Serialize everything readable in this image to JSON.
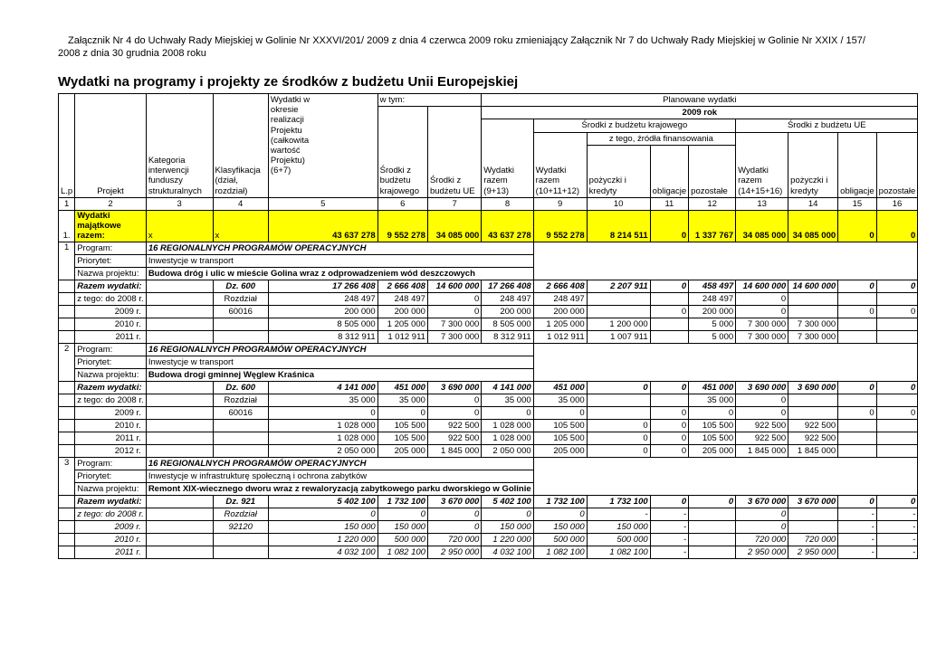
{
  "meta": {
    "attachment_note": "Załącznik Nr 4 do Uchwały Rady Miejskiej w Golinie Nr XXXVI/201/ 2009 z dnia 4 czerwca 2009 roku zmieniający Załącznik Nr 7 do Uchwały Rady Miejskiej w Golinie Nr  XXIX / 157/ 2008 z dnia 30 grudnia 2008 roku",
    "title": "Wydatki na programy i projekty ze środków z budżetu Unii Europejskiej"
  },
  "header": {
    "lp": "L.p",
    "projekt": "Projekt",
    "kategoria": "Kategoria interwencji funduszy strukturalnych",
    "klasyfikacja": "Klasyfikacja (dział, rozdział)",
    "wydatki_okres": "Wydatki w okresie realizacji Projektu (całkowita wartość Projektu) (6+7)",
    "w_tym": "w tym:",
    "planowane": "Planowane wydatki",
    "rok": "2009 rok",
    "srodki_krajowe": "Środki z budżetu krajowego",
    "srodki_ue": "Środki z budżetu UE",
    "srodki_krajowe_grp": "Środki z budżetu krajowego",
    "srodki_ue_grp": "Środki z budżetu UE",
    "z_tego": "z tego, źródła finansowania",
    "wydatki_razem_913": "Wydatki razem (9+13)",
    "wydatki_razem_101112": "Wydatki razem (10+11+12)",
    "pozyczki_kraj": "pożyczki i kredyty",
    "obligacje_kraj": "obligacje",
    "pozostale_kraj": "pozostałe",
    "wydatki_razem_141516": "Wydatki razem (14+15+16)",
    "pozyczki_ue": "pożyczki i kredyty",
    "obligacje_ue": "obligacje",
    "pozostale_ue": "pozostałe",
    "col_numbers": [
      "1",
      "2",
      "3",
      "4",
      "5",
      "6",
      "7",
      "8",
      "9",
      "10",
      "11",
      "12",
      "13",
      "14",
      "15",
      "16"
    ]
  },
  "rows": [
    {
      "type": "total",
      "lp": "1.",
      "label": "Wydatki majątkowe razem:",
      "c3": "x",
      "c4": "x",
      "values": [
        "43 637 278",
        "9 552 278",
        "34 085 000",
        "43 637 278",
        "9 552 278",
        "8 214 511",
        "0",
        "1 337 767",
        "34 085 000",
        "34 085 000",
        "0",
        "0"
      ]
    },
    {
      "type": "program",
      "num": "1",
      "label": "Program:",
      "text": "16 REGIONALNYCH PROGRAMÓW OPERACYJNYCH"
    },
    {
      "type": "priorytet",
      "label": "Priorytet:",
      "text": "Inwestycje w transport"
    },
    {
      "type": "nazwa",
      "label": "Nazwa projektu:",
      "text": "Budowa dróg i ulic w mieście Golina wraz z odprowadzeniem wód deszczowych"
    },
    {
      "type": "razem",
      "label": "Razem wydatki:",
      "klas": "Dz. 600",
      "values": [
        "17 266 408",
        "2 666 408",
        "14 600 000",
        "17 266 408",
        "2 666 408",
        "2 207 911",
        "0",
        "458 497",
        "14 600 000",
        "14 600 000",
        "0",
        "0"
      ]
    },
    {
      "type": "year",
      "label": "z tego: do 2008 r.",
      "klas": "Rozdział",
      "values": [
        "248 497",
        "248 497",
        "0",
        "248 497",
        "248 497",
        "",
        "",
        "248 497",
        "0",
        "",
        "",
        ""
      ]
    },
    {
      "type": "year",
      "label": "2009 r.",
      "klas": "60016",
      "values": [
        "200 000",
        "200 000",
        "0",
        "200 000",
        "200 000",
        "",
        "0",
        "200 000",
        "0",
        "",
        "0",
        "0"
      ]
    },
    {
      "type": "year",
      "label": "2010 r.",
      "klas": "",
      "values": [
        "8 505 000",
        "1 205 000",
        "7 300 000",
        "8 505 000",
        "1 205 000",
        "1 200 000",
        "",
        "5 000",
        "7 300 000",
        "7 300 000",
        "",
        ""
      ]
    },
    {
      "type": "year",
      "label": "2011 r.",
      "klas": "",
      "values": [
        "8 312 911",
        "1 012 911",
        "7 300 000",
        "8 312 911",
        "1 012 911",
        "1 007 911",
        "",
        "5 000",
        "7 300 000",
        "7 300 000",
        "",
        ""
      ]
    },
    {
      "type": "program",
      "num": "2",
      "label": "Program:",
      "text": "16 REGIONALNYCH PROGRAMÓW OPERACYJNYCH"
    },
    {
      "type": "priorytet",
      "label": "Priorytet:",
      "text": "Inwestycje w transport"
    },
    {
      "type": "nazwa",
      "label": "Nazwa projektu:",
      "text": "Budowa drogi gminnej Węglew Kraśnica"
    },
    {
      "type": "razem",
      "label": "Razem wydatki:",
      "klas": "Dz. 600",
      "values": [
        "4 141 000",
        "451 000",
        "3 690 000",
        "4 141 000",
        "451 000",
        "0",
        "0",
        "451 000",
        "3 690 000",
        "3 690 000",
        "0",
        "0"
      ]
    },
    {
      "type": "year",
      "label": "z tego: do 2008 r.",
      "klas": "Rozdział",
      "values": [
        "35 000",
        "35 000",
        "0",
        "35 000",
        "35 000",
        "",
        "",
        "35 000",
        "0",
        "",
        "",
        ""
      ]
    },
    {
      "type": "year",
      "label": "2009 r.",
      "klas": "60016",
      "values": [
        "0",
        "0",
        "0",
        "0",
        "0",
        "",
        "0",
        "0",
        "0",
        "",
        "0",
        "0"
      ]
    },
    {
      "type": "year",
      "label": "2010 r.",
      "klas": "",
      "values": [
        "1 028 000",
        "105 500",
        "922 500",
        "1 028 000",
        "105 500",
        "0",
        "0",
        "105 500",
        "922 500",
        "922 500",
        "",
        ""
      ]
    },
    {
      "type": "year",
      "label": "2011 r.",
      "klas": "",
      "values": [
        "1 028 000",
        "105 500",
        "922 500",
        "1 028 000",
        "105 500",
        "0",
        "0",
        "105 500",
        "922 500",
        "922 500",
        "",
        ""
      ]
    },
    {
      "type": "year",
      "label": "2012 r.",
      "klas": "",
      "values": [
        "2 050 000",
        "205 000",
        "1 845 000",
        "2 050 000",
        "205 000",
        "0",
        "0",
        "205 000",
        "1 845 000",
        "1 845 000",
        "",
        ""
      ]
    },
    {
      "type": "program",
      "num": "3",
      "label": "Program:",
      "text": "16 REGIONALNYCH PROGRAMÓW OPERACYJNYCH"
    },
    {
      "type": "priorytet",
      "label": "Priorytet:",
      "text": "Inwestycje w infrastrukturę społeczną i ochrona zabytków"
    },
    {
      "type": "nazwa",
      "label": "Nazwa projektu:",
      "text": "Remont XIX-wiecznego dworu wraz z rewaloryzacją zabytkowego parku dworskiego w Golinie"
    },
    {
      "type": "razem",
      "label": "Razem wydatki:",
      "klas": "Dz. 921",
      "values": [
        "5 402 100",
        "1 732 100",
        "3 670 000",
        "5 402 100",
        "1 732 100",
        "1 732 100",
        "0",
        "0",
        "3 670 000",
        "3 670 000",
        "0",
        "0"
      ]
    },
    {
      "type": "year",
      "italic": true,
      "label": "z tego: do 2008 r.",
      "klas": "Rozdział",
      "values": [
        "0",
        "0",
        "0",
        "0",
        "0",
        "-",
        "-",
        "",
        "0",
        "",
        "-",
        "-"
      ]
    },
    {
      "type": "year",
      "italic": true,
      "label": "2009 r.",
      "klas": "92120",
      "values": [
        "150 000",
        "150 000",
        "0",
        "150 000",
        "150 000",
        "150 000",
        "-",
        "",
        "0",
        "",
        "-",
        "-"
      ]
    },
    {
      "type": "year",
      "italic": true,
      "label": "2010 r.",
      "klas": "",
      "values": [
        "1 220 000",
        "500 000",
        "720 000",
        "1 220 000",
        "500 000",
        "500 000",
        "-",
        "",
        "720 000",
        "720 000",
        "-",
        "-"
      ]
    },
    {
      "type": "year",
      "italic": true,
      "label": "2011 r.",
      "klas": "",
      "values": [
        "4 032 100",
        "1 082 100",
        "2 950 000",
        "4 032 100",
        "1 082 100",
        "1 082 100",
        "-",
        "",
        "2 950 000",
        "2 950 000",
        "-",
        "-"
      ]
    }
  ]
}
